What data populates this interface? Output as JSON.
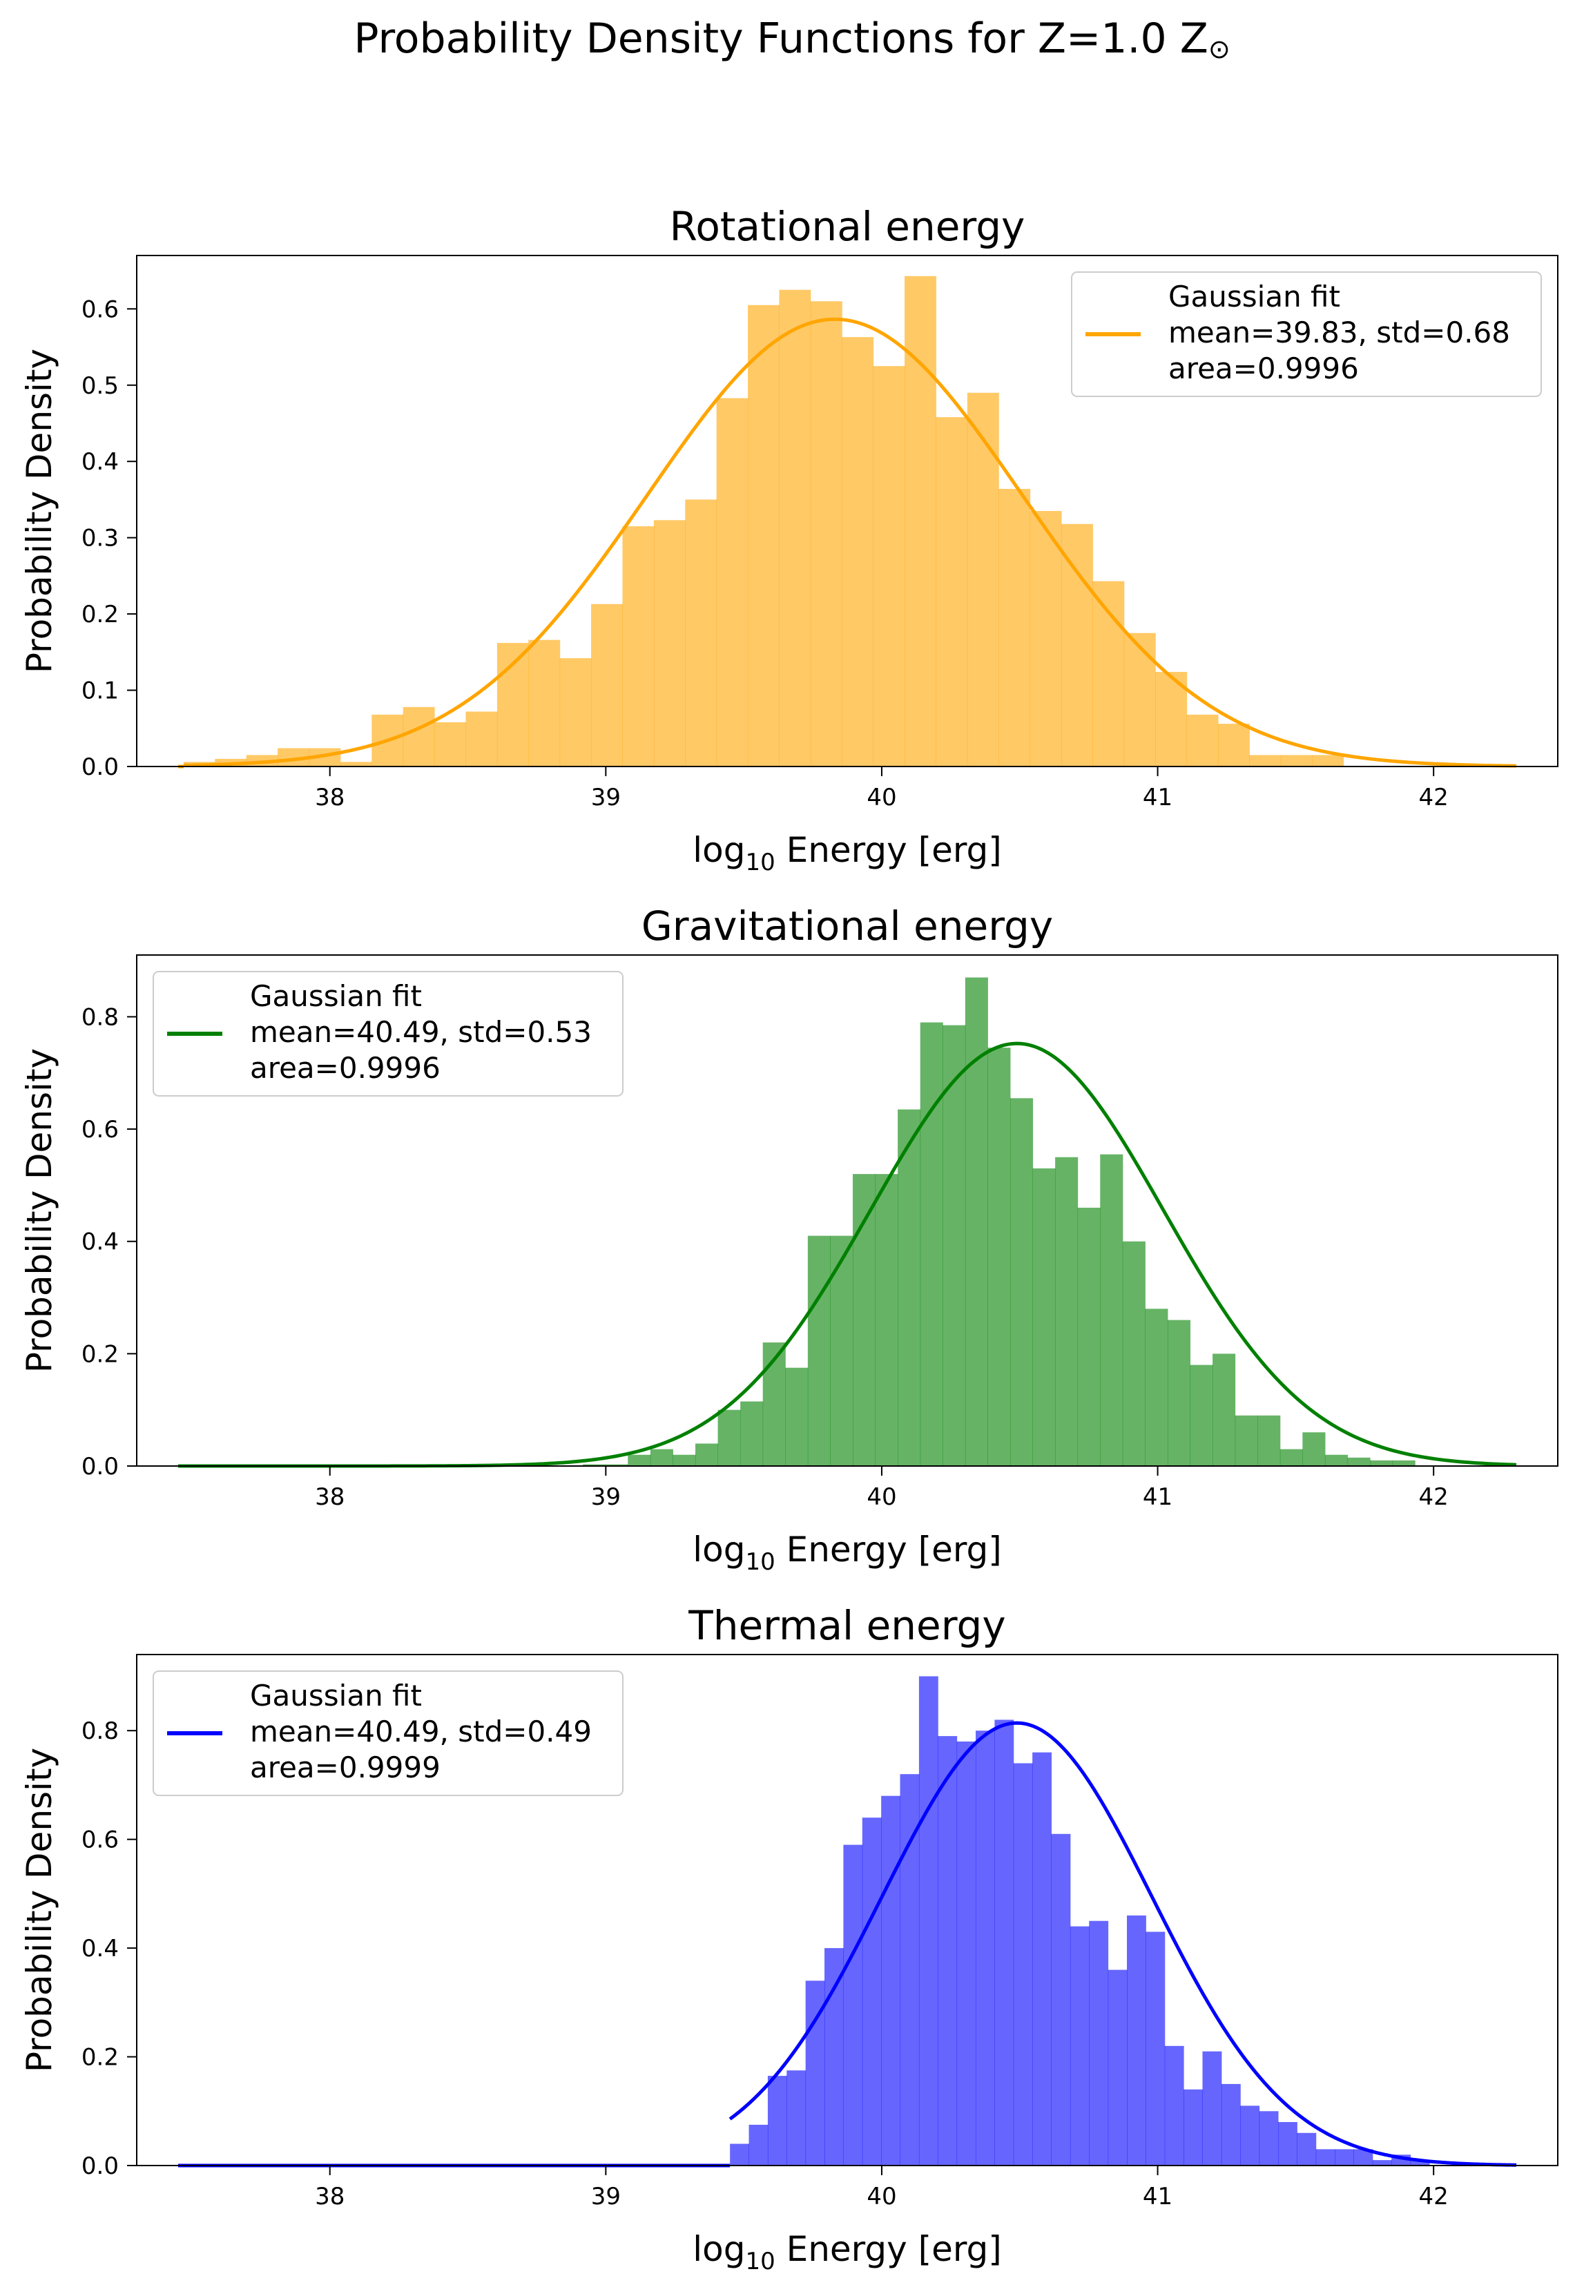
{
  "figure": {
    "suptitle": "Probability Density Functions for Z=1.0 Z",
    "suptitle_symbol": "⊙"
  },
  "chart_data": [
    {
      "type": "bar",
      "subtype": "histogram-with-gaussian-fit",
      "title": "Rotational energy",
      "xlabel_main": "log",
      "xlabel_sub": "10",
      "xlabel_rest": " Energy [erg]",
      "ylabel": "Probability Density",
      "xlim": [
        37.3,
        42.45
      ],
      "ylim": [
        0,
        0.67
      ],
      "xticks": [
        38,
        39,
        40,
        41,
        42
      ],
      "xtick_labels": [
        "38",
        "39",
        "40",
        "41",
        "42"
      ],
      "yticks": [
        0.0,
        0.1,
        0.2,
        0.3,
        0.4,
        0.5,
        0.6
      ],
      "ytick_labels": [
        "0.0",
        "0.1",
        "0.2",
        "0.3",
        "0.4",
        "0.5",
        "0.6"
      ],
      "hist_color": "#ffa500",
      "hist_alpha": 0.6,
      "line_color": "#ffa500",
      "bins_start": 37.47,
      "bin_width": 0.1136,
      "values": [
        0.006,
        0.01,
        0.015,
        0.024,
        0.024,
        0.006,
        0.068,
        0.078,
        0.058,
        0.072,
        0.162,
        0.166,
        0.142,
        0.213,
        0.315,
        0.323,
        0.35,
        0.483,
        0.605,
        0.625,
        0.61,
        0.563,
        0.525,
        0.643,
        0.458,
        0.49,
        0.364,
        0.335,
        0.318,
        0.243,
        0.175,
        0.124,
        0.068,
        0.056,
        0.015,
        0.015,
        0.015
      ],
      "fit": {
        "mean": 39.83,
        "std": 0.68,
        "area": 0.9996
      },
      "legend": {
        "position": "upper right",
        "line1": "Gaussian fit",
        "line2": "mean=39.83, std=0.68",
        "line3": "area=0.9996"
      }
    },
    {
      "type": "bar",
      "subtype": "histogram-with-gaussian-fit",
      "title": "Gravitational energy",
      "xlabel_main": "log",
      "xlabel_sub": "10",
      "xlabel_rest": " Energy [erg]",
      "ylabel": "Probability Density",
      "xlim": [
        37.3,
        42.45
      ],
      "ylim": [
        0,
        0.91
      ],
      "xticks": [
        38,
        39,
        40,
        41,
        42
      ],
      "xtick_labels": [
        "38",
        "39",
        "40",
        "41",
        "42"
      ],
      "yticks": [
        0.0,
        0.2,
        0.4,
        0.6,
        0.8
      ],
      "ytick_labels": [
        "0.0",
        "0.2",
        "0.4",
        "0.6",
        "0.8"
      ],
      "hist_color": "#008000",
      "hist_alpha": 0.6,
      "line_color": "#008000",
      "bins_start": 37.45,
      "bin_width": 0.0815,
      "values": [
        0.002,
        0.0,
        0.0,
        0.0,
        0.0,
        0.0,
        0.0,
        0.0,
        0.0,
        0.0,
        0.0,
        0.0,
        0.0,
        0.0,
        0.0,
        0.0,
        0.0,
        0.0,
        0.003,
        0.003,
        0.02,
        0.03,
        0.02,
        0.04,
        0.1,
        0.115,
        0.22,
        0.175,
        0.41,
        0.41,
        0.52,
        0.52,
        0.635,
        0.79,
        0.785,
        0.87,
        0.745,
        0.655,
        0.53,
        0.55,
        0.46,
        0.555,
        0.4,
        0.28,
        0.26,
        0.18,
        0.2,
        0.09,
        0.09,
        0.03,
        0.06,
        0.02,
        0.015,
        0.01,
        0.01
      ],
      "fit": {
        "mean": 40.49,
        "std": 0.53,
        "area": 0.9996
      },
      "legend": {
        "position": "upper left",
        "line1": "Gaussian fit",
        "line2": "mean=40.49, std=0.53",
        "line3": "area=0.9996"
      }
    },
    {
      "type": "bar",
      "subtype": "histogram-with-gaussian-fit",
      "title": "Thermal energy",
      "xlabel_main": "log",
      "xlabel_sub": "10",
      "xlabel_rest": " Energy [erg]",
      "ylabel": "Probability Density",
      "xlim": [
        37.3,
        42.45
      ],
      "ylim": [
        0,
        0.94
      ],
      "xticks": [
        38,
        39,
        40,
        41,
        42
      ],
      "xtick_labels": [
        "38",
        "39",
        "40",
        "41",
        "42"
      ],
      "yticks": [
        0.0,
        0.2,
        0.4,
        0.6,
        0.8
      ],
      "ytick_labels": [
        "0.0",
        "0.2",
        "0.4",
        "0.6",
        "0.8"
      ],
      "hist_color": "#0000ff",
      "hist_alpha": 0.6,
      "line_color": "#0000ff",
      "bins_start": 39.45,
      "bin_width": 0.0685,
      "values": [
        0.04,
        0.075,
        0.165,
        0.175,
        0.34,
        0.4,
        0.59,
        0.64,
        0.68,
        0.72,
        0.9,
        0.79,
        0.78,
        0.8,
        0.82,
        0.74,
        0.76,
        0.61,
        0.44,
        0.45,
        0.36,
        0.46,
        0.43,
        0.22,
        0.14,
        0.21,
        0.15,
        0.11,
        0.1,
        0.08,
        0.06,
        0.03,
        0.03,
        0.03,
        0.01,
        0.02,
        0.01
      ],
      "fit": {
        "mean": 40.49,
        "std": 0.49,
        "area": 0.9999
      },
      "legend": {
        "position": "upper left",
        "line1": "Gaussian fit",
        "line2": "mean=40.49, std=0.49",
        "line3": "area=0.9999"
      }
    }
  ]
}
